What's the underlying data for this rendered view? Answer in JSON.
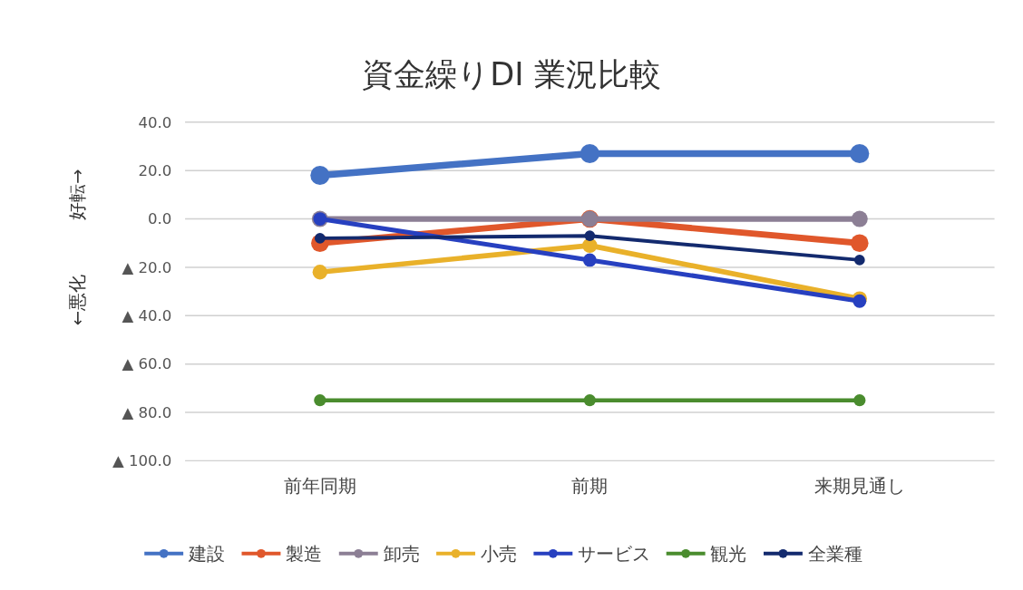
{
  "chart_data": {
    "type": "line",
    "title": "資金繰りDI 業況比較",
    "ylabel": "←悪化　　　好転→",
    "categories": [
      "前年同期",
      "前期",
      "来期見通し"
    ],
    "series": [
      {
        "name": "建設",
        "color": "#4472c4",
        "values": [
          18,
          27,
          27
        ]
      },
      {
        "name": "製造",
        "color": "#e0572b",
        "values": [
          -10,
          0,
          -10
        ]
      },
      {
        "name": "卸売",
        "color": "#8c7f95",
        "values": [
          0,
          0,
          0
        ]
      },
      {
        "name": "小売",
        "color": "#e9b12a",
        "values": [
          -22,
          -11,
          -33
        ]
      },
      {
        "name": "サービス",
        "color": "#2740c0",
        "values": [
          0,
          -17,
          -34
        ]
      },
      {
        "name": "観光",
        "color": "#4a8c2e",
        "values": [
          -75,
          -75,
          -75
        ]
      },
      {
        "name": "全業種",
        "color": "#132a6e",
        "values": [
          -8,
          -7,
          -17
        ]
      }
    ],
    "ylim": [
      -100,
      40
    ],
    "yticks": [
      {
        "value": 40,
        "label": "40.0"
      },
      {
        "value": 20,
        "label": "20.0"
      },
      {
        "value": 0,
        "label": "0.0"
      },
      {
        "value": -20,
        "label": "▲ 20.0"
      },
      {
        "value": -40,
        "label": "▲ 40.0"
      },
      {
        "value": -60,
        "label": "▲ 60.0"
      },
      {
        "value": -80,
        "label": "▲ 80.0"
      },
      {
        "value": -100,
        "label": "▲ 100.0"
      }
    ],
    "grid": "y",
    "legend": "bottom",
    "marker": "circle",
    "line_style": "solid"
  }
}
